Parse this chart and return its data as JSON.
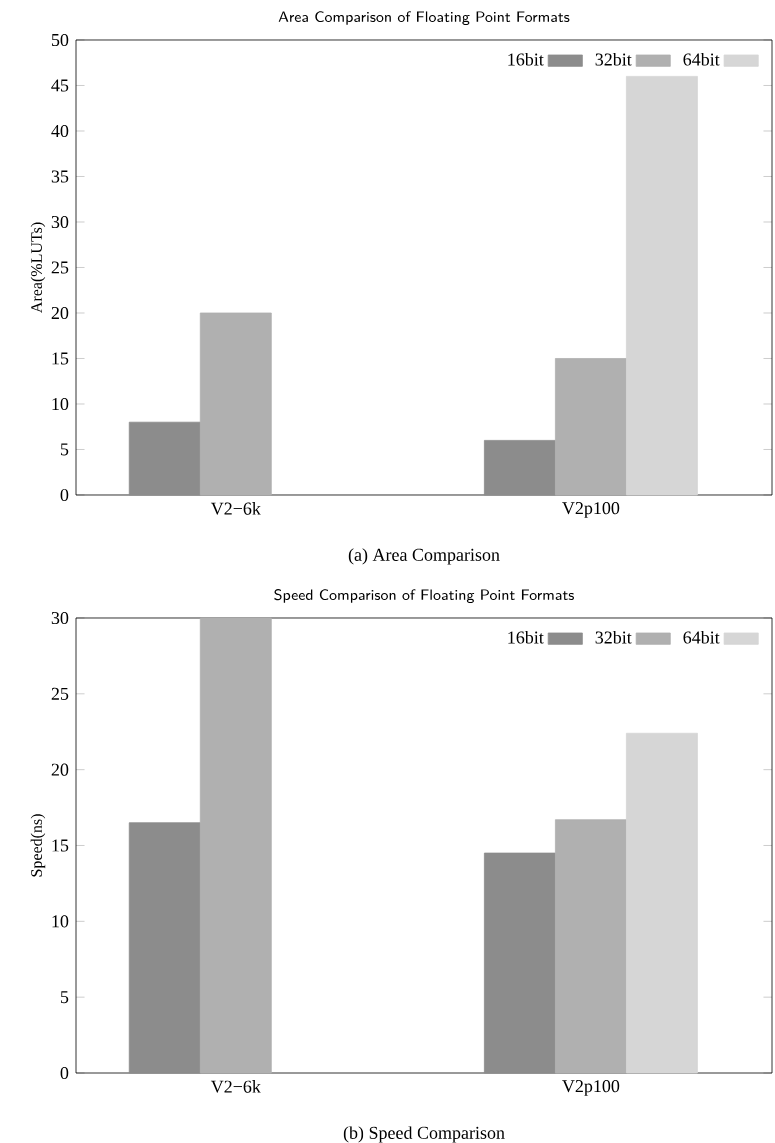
{
  "chart_data": [
    {
      "type": "bar",
      "title": "Area Comparison of Floating Point Formats",
      "ylabel": "Area(%LUTs)",
      "categories": [
        "V2−6k",
        "V2p100"
      ],
      "series": [
        {
          "name": "16bit",
          "color": "#8c8c8c",
          "values": [
            8,
            6
          ]
        },
        {
          "name": "32bit",
          "color": "#b0b0b0",
          "values": [
            20,
            15
          ]
        },
        {
          "name": "64bit",
          "color": "#d6d6d6",
          "values": [
            null,
            46
          ]
        }
      ],
      "ylim": [
        0,
        50
      ],
      "yticks": [
        0,
        5,
        10,
        15,
        20,
        25,
        30,
        35,
        40,
        45,
        50
      ],
      "legend": "top right",
      "annotations": [
        "(a) Area Comparison"
      ]
    },
    {
      "type": "bar",
      "title": "Speed Comparison of Floating Point Formats",
      "ylabel": "Speed(ns)",
      "categories": [
        "V2−6k",
        "V2p100"
      ],
      "series": [
        {
          "name": "16bit",
          "color": "#8c8c8c",
          "values": [
            16.5,
            14.5
          ]
        },
        {
          "name": "32bit",
          "color": "#b0b0b0",
          "values": [
            30,
            16.7
          ]
        },
        {
          "name": "64bit",
          "color": "#d6d6d6",
          "values": [
            null,
            22.4
          ]
        }
      ],
      "ylim": [
        0,
        30
      ],
      "yticks": [
        0,
        5,
        10,
        15,
        20,
        25,
        30
      ],
      "legend": "top right",
      "annotations": [
        "(b) Speed Comparison"
      ]
    }
  ]
}
